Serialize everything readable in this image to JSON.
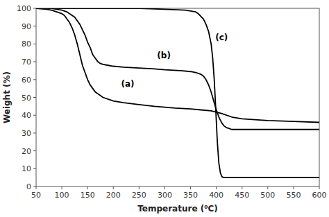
{
  "chart_data": {
    "type": "line",
    "x_label": "Temperature (⁰C)",
    "y_label": "Weight (%)",
    "xlim": [
      50,
      600
    ],
    "ylim": [
      0,
      100
    ],
    "xticks": [
      50,
      100,
      150,
      200,
      250,
      300,
      350,
      400,
      450,
      500,
      550,
      600
    ],
    "yticks": [
      0,
      10,
      20,
      30,
      40,
      50,
      60,
      70,
      80,
      90,
      100
    ],
    "grid": false,
    "color": "#000000",
    "series": [
      {
        "x": [
          50,
          70,
          80,
          90,
          100,
          105,
          110,
          115,
          120,
          125,
          130,
          135,
          140,
          145,
          150,
          155,
          160,
          165,
          170,
          180,
          200,
          220,
          250,
          280,
          300,
          320,
          350,
          370,
          390,
          410,
          430,
          450,
          500,
          550,
          600
        ],
        "values": [
          100,
          99.5,
          99,
          98,
          97,
          96,
          94,
          92,
          89,
          85,
          80,
          74,
          68,
          64,
          60,
          57,
          55,
          53,
          52,
          50,
          48,
          47,
          46,
          45,
          44.5,
          44,
          43.5,
          43,
          42.5,
          41,
          39,
          38,
          37,
          36.5,
          36
        ]
      },
      {
        "x": [
          50,
          70,
          80,
          90,
          100,
          110,
          120,
          125,
          130,
          135,
          140,
          145,
          150,
          155,
          160,
          165,
          170,
          175,
          180,
          190,
          200,
          220,
          250,
          280,
          300,
          330,
          350,
          360,
          370,
          375,
          380,
          385,
          390,
          395,
          400,
          405,
          410,
          415,
          420,
          425,
          430,
          440,
          450,
          500,
          550,
          600
        ],
        "values": [
          100,
          100,
          100,
          99.5,
          99,
          98,
          96,
          95,
          93,
          91,
          88,
          85,
          81,
          78,
          74,
          72,
          70,
          69,
          68.5,
          68,
          67.5,
          67,
          66.5,
          66,
          65.5,
          65,
          64.5,
          64,
          63,
          62,
          60,
          57,
          53,
          48,
          43,
          39,
          36,
          34,
          33,
          32.5,
          32,
          32,
          32,
          32,
          32,
          32
        ]
      },
      {
        "x": [
          50,
          100,
          150,
          200,
          250,
          300,
          340,
          350,
          360,
          365,
          370,
          375,
          380,
          385,
          390,
          393,
          396,
          399,
          402,
          405,
          408,
          411,
          414,
          417,
          420,
          425,
          430,
          440,
          450,
          500,
          550,
          600
        ],
        "values": [
          100,
          100,
          100,
          100,
          100,
          99.5,
          99,
          98.5,
          98,
          97,
          95.5,
          94,
          91,
          87,
          80,
          72,
          60,
          43,
          25,
          13,
          7.5,
          5.5,
          5,
          5,
          5,
          5,
          5,
          5,
          5,
          5,
          5,
          5
        ]
      }
    ],
    "annotations": [
      {
        "text": "(a)",
        "x": 215,
        "y": 56
      },
      {
        "text": "(b)",
        "x": 285,
        "y": 72
      },
      {
        "text": "(c)",
        "x": 398,
        "y": 82
      }
    ]
  }
}
